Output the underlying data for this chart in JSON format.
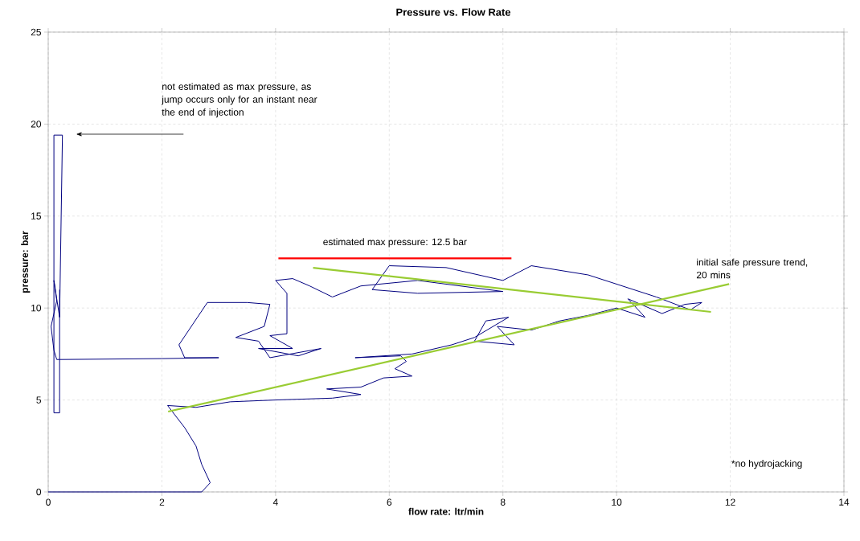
{
  "chart_data": {
    "type": "line",
    "title": "Pressure vs. Flow Rate",
    "xlabel": "flow rate: ltr/min",
    "ylabel": "pressure: bar",
    "xlim": [
      0,
      14
    ],
    "ylim": [
      0,
      25
    ],
    "xticks": [
      0,
      2,
      4,
      6,
      8,
      10,
      12,
      14
    ],
    "yticks": [
      0,
      5,
      10,
      15,
      20,
      25
    ],
    "grid": true,
    "line_style": "solid",
    "series": [
      {
        "color": "#000080",
        "x": [
          0,
          2.7,
          2.85,
          2.7,
          2.6,
          2.4,
          2.1,
          2.6,
          3.2,
          4.0,
          5.0,
          5.5,
          4.9,
          5.5,
          5.9,
          6.4,
          6.1,
          6.3,
          6.2,
          5.4,
          6.4,
          7.1,
          7.5,
          8.1,
          7.7,
          7.5,
          8.2,
          7.9,
          8.5,
          9.0,
          9.5,
          10.0,
          10.5,
          10.2,
          10.8,
          11.2,
          11.5,
          11.3,
          10.7,
          10.0,
          9.5,
          8.5,
          8.0,
          7.0,
          6.0,
          5.7,
          6.5,
          8.0,
          6.5,
          5.5,
          5.0,
          4.6,
          4.3,
          4.0,
          4.2,
          4.2,
          3.9,
          4.3,
          3.7,
          4.4,
          4.8,
          3.9,
          3.7,
          3.3,
          3.8,
          3.9,
          3.5,
          2.8,
          2.3,
          2.4,
          3.0,
          2.0,
          0.15,
          0.1,
          0.05,
          0.15,
          0.1,
          0.2,
          0.25,
          0.1,
          0.1,
          0.2,
          0.2
        ],
        "values": [
          0,
          0,
          0.5,
          1.5,
          2.5,
          3.5,
          4.7,
          4.6,
          4.9,
          5.0,
          5.1,
          5.3,
          5.6,
          5.7,
          6.2,
          6.3,
          6.7,
          7.1,
          7.4,
          7.3,
          7.5,
          8.0,
          8.4,
          9.5,
          9.3,
          8.2,
          8.0,
          9.0,
          8.8,
          9.3,
          9.6,
          10.0,
          9.5,
          10.5,
          9.7,
          10.2,
          10.3,
          9.9,
          10.6,
          11.3,
          11.8,
          12.3,
          11.5,
          12.2,
          12.3,
          11.0,
          10.8,
          10.9,
          11.5,
          11.2,
          10.6,
          11.2,
          11.6,
          11.5,
          10.8,
          8.6,
          8.5,
          7.8,
          7.8,
          7.4,
          7.8,
          7.3,
          8.2,
          8.4,
          9.0,
          10.2,
          10.3,
          10.3,
          8.0,
          7.3,
          7.3,
          7.25,
          7.2,
          7.7,
          9.0,
          10.4,
          11.5,
          9.5,
          19.4,
          19.4,
          4.3,
          4.3,
          11.0
        ]
      },
      {
        "type": "line",
        "color": "#99cc33",
        "x": [
          2.11,
          11.98
        ],
        "values": [
          4.37,
          11.3
        ]
      },
      {
        "type": "line",
        "color": "#99cc33",
        "x": [
          11.66,
          4.66
        ],
        "values": [
          9.79,
          12.19
        ]
      },
      {
        "type": "line",
        "color": "#ff0000",
        "x": [
          4.05,
          8.15
        ],
        "values": [
          12.7,
          12.7
        ]
      }
    ],
    "annotations": [
      "not estimated as max pressure, as jump occurs only for an instant near the end of injection",
      {
        "text": "estimated max pressure: 12.5 bar",
        "x": 6.1,
        "y": 12.7
      },
      {
        "text": "initial safe pressure trend, 20 mins",
        "x": 12,
        "y": 11.3
      },
      "*no hydrojacking"
    ]
  }
}
